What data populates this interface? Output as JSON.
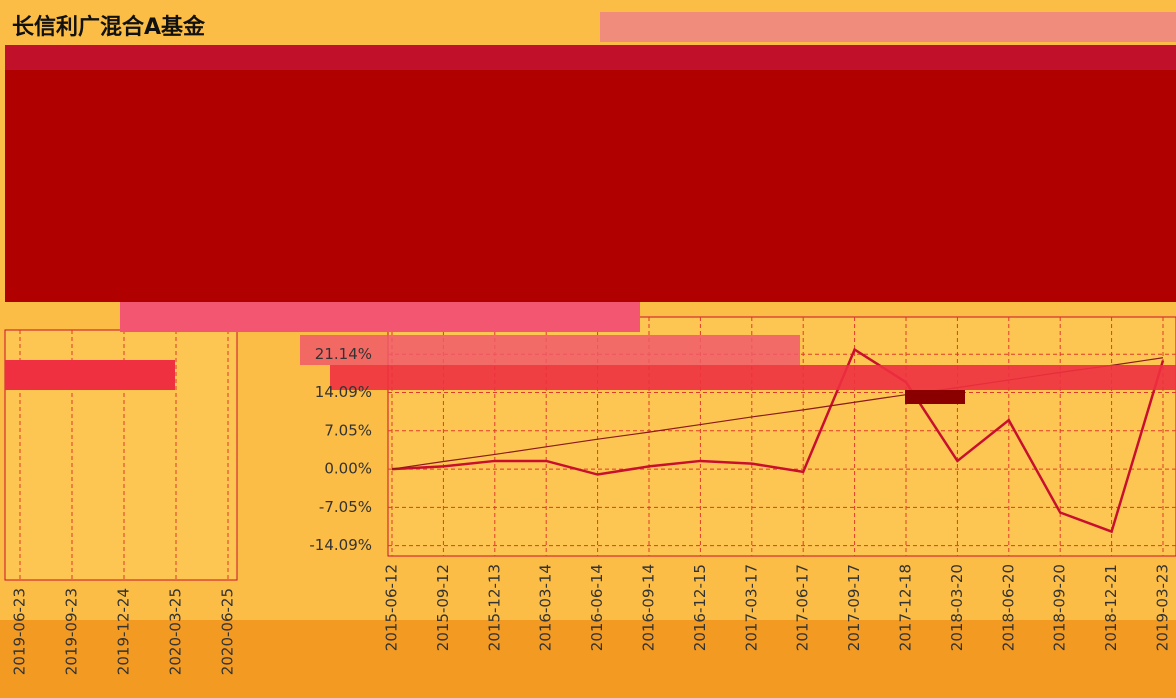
{
  "title": "长信利广混合A基金",
  "chart_data": [
    {
      "type": "line",
      "categories": [
        "2015-06-12",
        "2015-09-12",
        "2015-12-13",
        "2016-03-14",
        "2016-06-14",
        "2016-09-14",
        "2016-12-15",
        "2017-03-17",
        "2017-06-17",
        "2017-09-17",
        "2017-12-18",
        "2018-03-20",
        "2018-06-20",
        "2018-09-20",
        "2018-12-21",
        "2019-03-23"
      ],
      "series": [
        {
          "color": "#c8102e",
          "values": [
            0,
            0.5,
            1.5,
            1.5,
            -1,
            0.5,
            1.5,
            1,
            -0.5,
            22,
            16,
            1.5,
            9,
            -8,
            -11.5,
            20
          ]
        },
        {
          "color": "#8b1a1a",
          "values": [
            0,
            1.4,
            2.7,
            4.1,
            5.5,
            6.8,
            8.2,
            9.6,
            10.9,
            12.3,
            13.7,
            15,
            16.4,
            17.8,
            19.1,
            20.5
          ]
        }
      ],
      "ylim": [
        -16,
        28
      ],
      "yticks": [
        {
          "value": 21.14,
          "label": "21.14%"
        },
        {
          "value": 14.09,
          "label": "14.09%"
        },
        {
          "value": 7.05,
          "label": "7.05%"
        },
        {
          "value": 0,
          "label": "0.00%"
        },
        {
          "value": -7.05,
          "label": "-7.05%"
        },
        {
          "value": -14.09,
          "label": "-14.09%"
        }
      ],
      "grid": true
    },
    {
      "type": "line",
      "categories": [
        "2019-06-23",
        "2019-09-23",
        "2019-12-24",
        "2020-03-25",
        "2020-06-25"
      ],
      "grid": true
    }
  ]
}
